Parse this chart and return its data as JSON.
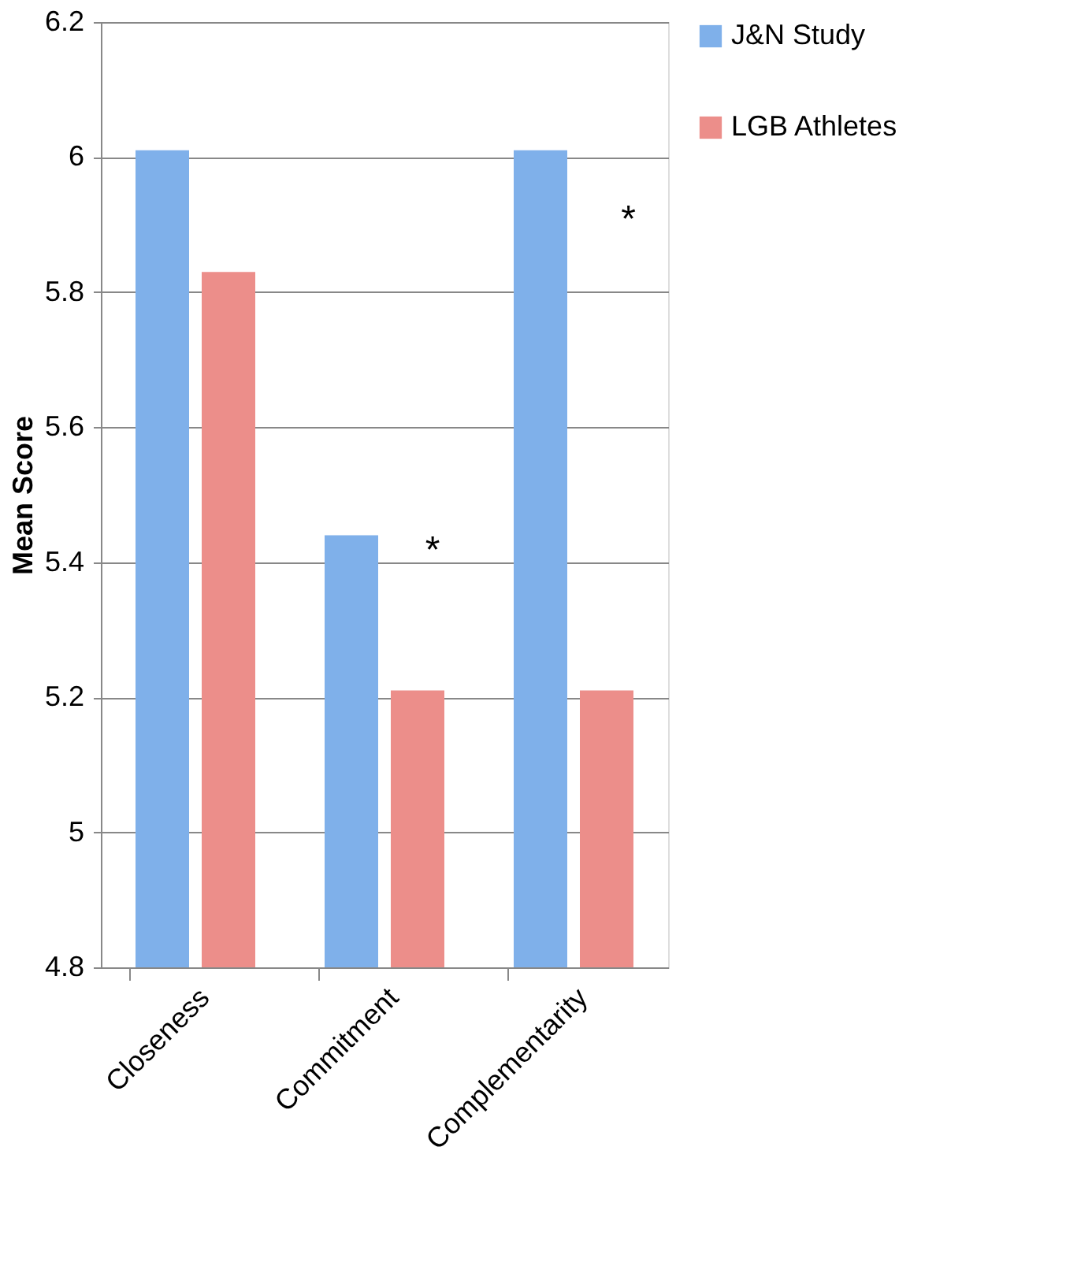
{
  "chart_data": {
    "type": "bar",
    "ylabel": "Mean Score",
    "categories": [
      "Closeness",
      "Commitment",
      "Complementarity"
    ],
    "series": [
      {
        "name": "J&N Study",
        "color": "#7fb0ea",
        "values": [
          6.01,
          5.44,
          6.01
        ]
      },
      {
        "name": "LGB Athletes",
        "color": "#ec8e8a",
        "values": [
          5.83,
          5.21,
          5.21
        ]
      }
    ],
    "ylim": [
      4.8,
      6.2
    ],
    "yticks": [
      4.8,
      5,
      5.2,
      5.4,
      5.6,
      5.8,
      6,
      6.2
    ],
    "grid": "y",
    "legend": "right",
    "annotations": [
      "*",
      "*"
    ]
  }
}
